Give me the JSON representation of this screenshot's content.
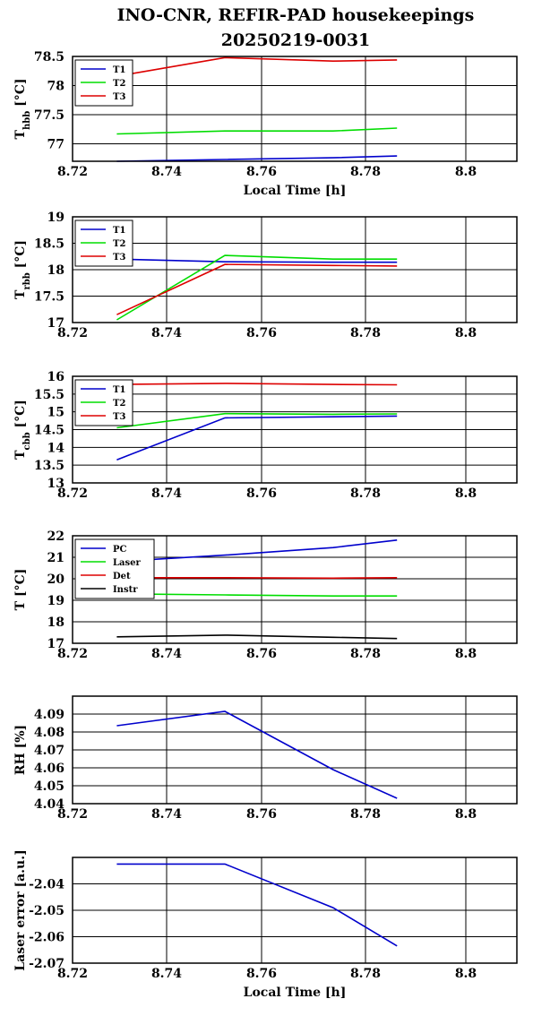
{
  "title_line1": "INO-CNR, REFIR-PAD housekeepings",
  "title_line2": "20250219-0031",
  "chart_data": [
    {
      "type": "line",
      "ylabel_main": "T",
      "ylabel_sub": "hbb",
      "ylabel_unit": " [°C]",
      "xlabel": "Local Time [h]",
      "xlim": [
        8.72,
        8.79
      ],
      "ylim": [
        76.7,
        78.5
      ],
      "xticks": [
        8.72,
        8.74,
        8.76,
        8.78,
        8.8
      ],
      "xtick_labels": [
        "8.72",
        "8.74",
        "8.76",
        "8.78",
        "8.8"
      ],
      "yticks": [
        77,
        77.5,
        78,
        78.5
      ],
      "ytick_labels": [
        "77",
        "77.5",
        "78",
        "78.5"
      ],
      "grid": true,
      "legend_position": "top-left",
      "series": [
        {
          "name": "T1",
          "color": "#0000cc",
          "x": [
            8.729,
            8.751,
            8.773,
            8.786
          ],
          "y": [
            76.7,
            76.73,
            76.76,
            76.79
          ]
        },
        {
          "name": "T2",
          "color": "#00dd00",
          "x": [
            8.729,
            8.751,
            8.773,
            8.786
          ],
          "y": [
            77.17,
            77.22,
            77.22,
            77.27
          ]
        },
        {
          "name": "T3",
          "color": "#dd0000",
          "x": [
            8.729,
            8.751,
            8.773,
            8.786
          ],
          "y": [
            78.16,
            78.48,
            78.42,
            78.44
          ]
        }
      ]
    },
    {
      "type": "line",
      "ylabel_main": "T",
      "ylabel_sub": "rbb",
      "ylabel_unit": " [°C]",
      "xlabel": "",
      "xlim": [
        8.72,
        8.79
      ],
      "ylim": [
        17,
        19
      ],
      "xticks": [
        8.72,
        8.74,
        8.76,
        8.78,
        8.8
      ],
      "xtick_labels": [
        "8.72",
        "8.74",
        "8.76",
        "8.78",
        "8.8"
      ],
      "yticks": [
        17,
        17.5,
        18,
        18.5,
        19
      ],
      "ytick_labels": [
        "17",
        "17.5",
        "18",
        "18.5",
        "19"
      ],
      "grid": true,
      "legend_position": "top-left",
      "series": [
        {
          "name": "T1",
          "color": "#0000cc",
          "x": [
            8.729,
            8.751,
            8.773,
            8.786
          ],
          "y": [
            18.2,
            18.15,
            18.14,
            18.14
          ]
        },
        {
          "name": "T2",
          "color": "#00dd00",
          "x": [
            8.729,
            8.751,
            8.773,
            8.786
          ],
          "y": [
            17.05,
            18.27,
            18.2,
            18.2
          ]
        },
        {
          "name": "T3",
          "color": "#dd0000",
          "x": [
            8.729,
            8.751,
            8.773,
            8.786
          ],
          "y": [
            17.15,
            18.1,
            18.08,
            18.07
          ]
        }
      ]
    },
    {
      "type": "line",
      "ylabel_main": "T",
      "ylabel_sub": "cbb",
      "ylabel_unit": " [°C]",
      "xlabel": "",
      "xlim": [
        8.72,
        8.79
      ],
      "ylim": [
        13,
        16
      ],
      "xticks": [
        8.72,
        8.74,
        8.76,
        8.78,
        8.8
      ],
      "xtick_labels": [
        "8.72",
        "8.74",
        "8.76",
        "8.78",
        "8.8"
      ],
      "yticks": [
        13,
        13.5,
        14,
        14.5,
        15,
        15.5,
        16
      ],
      "ytick_labels": [
        "13",
        "13.5",
        "14",
        "14.5",
        "15",
        "15.5",
        "16"
      ],
      "grid": true,
      "legend_position": "top-left",
      "series": [
        {
          "name": "T1",
          "color": "#0000cc",
          "x": [
            8.729,
            8.751,
            8.773,
            8.786
          ],
          "y": [
            13.65,
            14.83,
            14.86,
            14.88
          ]
        },
        {
          "name": "T2",
          "color": "#00dd00",
          "x": [
            8.729,
            8.751,
            8.773,
            8.786
          ],
          "y": [
            14.55,
            14.95,
            14.93,
            14.94
          ]
        },
        {
          "name": "T3",
          "color": "#dd0000",
          "x": [
            8.729,
            8.751,
            8.773,
            8.786
          ],
          "y": [
            15.77,
            15.8,
            15.77,
            15.76
          ]
        }
      ]
    },
    {
      "type": "line",
      "ylabel_main": "T [°C]",
      "ylabel_sub": "",
      "ylabel_unit": "",
      "xlabel": "",
      "xlim": [
        8.72,
        8.79
      ],
      "ylim": [
        17,
        22
      ],
      "xticks": [
        8.72,
        8.74,
        8.76,
        8.78,
        8.8
      ],
      "xtick_labels": [
        "8.72",
        "8.74",
        "8.76",
        "8.78",
        "8.8"
      ],
      "yticks": [
        17,
        18,
        19,
        20,
        21,
        22
      ],
      "ytick_labels": [
        "17",
        "18",
        "19",
        "20",
        "21",
        "22"
      ],
      "grid": true,
      "legend_position": "top-left",
      "series": [
        {
          "name": "PC",
          "color": "#0000cc",
          "x": [
            8.729,
            8.751,
            8.773,
            8.786
          ],
          "y": [
            20.8,
            21.1,
            21.45,
            21.8
          ]
        },
        {
          "name": "Laser",
          "color": "#00dd00",
          "x": [
            8.729,
            8.751,
            8.773,
            8.786
          ],
          "y": [
            19.3,
            19.25,
            19.2,
            19.2
          ]
        },
        {
          "name": "Det",
          "color": "#dd0000",
          "x": [
            8.729,
            8.751,
            8.773,
            8.786
          ],
          "y": [
            20.05,
            20.05,
            20.03,
            20.05
          ]
        },
        {
          "name": "Instr",
          "color": "#000000",
          "x": [
            8.729,
            8.751,
            8.773,
            8.786
          ],
          "y": [
            17.3,
            17.38,
            17.28,
            17.22
          ]
        }
      ]
    },
    {
      "type": "line",
      "ylabel_main": "RH [%]",
      "ylabel_sub": "",
      "ylabel_unit": "",
      "xlabel": "",
      "xlim": [
        8.72,
        8.79
      ],
      "ylim": [
        4.04,
        4.1
      ],
      "xticks": [
        8.72,
        8.74,
        8.76,
        8.78,
        8.8
      ],
      "xtick_labels": [
        "8.72",
        "8.74",
        "8.76",
        "8.78",
        "8.8"
      ],
      "yticks": [
        4.04,
        4.05,
        4.06,
        4.07,
        4.08,
        4.09
      ],
      "ytick_labels": [
        "4.04",
        "4.05",
        "4.06",
        "4.07",
        "4.08",
        "4.09"
      ],
      "grid": true,
      "legend_position": "none",
      "series": [
        {
          "name": "",
          "color": "#0000cc",
          "x": [
            8.729,
            8.751,
            8.773,
            8.786
          ],
          "y": [
            4.0835,
            4.0915,
            4.059,
            4.043
          ]
        }
      ]
    },
    {
      "type": "line",
      "ylabel_main": "Laser error [a.u.]",
      "ylabel_sub": "",
      "ylabel_unit": "",
      "xlabel": "Local Time [h]",
      "xlim": [
        8.72,
        8.79
      ],
      "ylim": [
        -2.07,
        -2.03
      ],
      "xticks": [
        8.72,
        8.74,
        8.76,
        8.78,
        8.8
      ],
      "xtick_labels": [
        "8.72",
        "8.74",
        "8.76",
        "8.78",
        "8.8"
      ],
      "yticks": [
        -2.07,
        -2.06,
        -2.05,
        -2.04
      ],
      "ytick_labels": [
        "-2.07",
        "-2.06",
        "-2.05",
        "-2.04"
      ],
      "grid": true,
      "legend_position": "none",
      "series": [
        {
          "name": "",
          "color": "#0000cc",
          "x": [
            8.729,
            8.751,
            8.773,
            8.786
          ],
          "y": [
            -2.0325,
            -2.0325,
            -2.049,
            -2.0635
          ]
        }
      ]
    }
  ]
}
